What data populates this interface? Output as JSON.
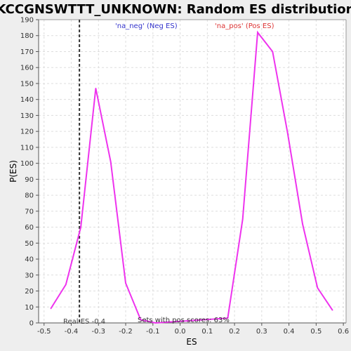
{
  "chart_data": {
    "type": "line",
    "title": "KCCGNSWTTT_UNKNOWN: Random ES distribution",
    "xlabel": "ES",
    "ylabel": "P(ES)",
    "xlim": [
      -0.52,
      0.61
    ],
    "ylim": [
      0,
      190
    ],
    "x_ticks": [
      -0.5,
      -0.4,
      -0.3,
      -0.2,
      -0.1,
      0.0,
      0.1,
      0.2,
      0.3,
      0.4,
      0.5,
      0.6
    ],
    "x_tick_labels": [
      "-0.5",
      "-0.4",
      "-0.3",
      "-0.2",
      "-0.1",
      "0.0",
      "0.1",
      "0.2",
      "0.3",
      "0.4",
      "0.5",
      "0.6"
    ],
    "y_ticks": [
      0,
      10,
      20,
      30,
      40,
      50,
      60,
      70,
      80,
      90,
      100,
      110,
      120,
      130,
      140,
      150,
      160,
      170,
      180,
      190
    ],
    "y_tick_labels": [
      "0",
      "10",
      "20",
      "30",
      "40",
      "50",
      "60",
      "70",
      "80",
      "90",
      "100",
      "110",
      "120",
      "130",
      "140",
      "150",
      "160",
      "170",
      "180",
      "190"
    ],
    "grid": true,
    "series": [
      {
        "color": "#ee33ee",
        "x": [
          -0.475,
          -0.42,
          -0.365,
          -0.31,
          -0.255,
          -0.2,
          -0.145,
          -0.09,
          0.175,
          0.23,
          0.285,
          0.34,
          0.395,
          0.45,
          0.505,
          0.56
        ],
        "y": [
          9,
          24,
          60,
          147,
          101,
          25,
          2,
          0,
          3,
          65,
          182,
          170,
          119,
          62,
          22,
          8
        ]
      }
    ],
    "real_es": -0.37,
    "annotations": {
      "neg_label": "'na_neg' (Neg ES)",
      "neg_color": "#3333cc",
      "pos_label": "'na_pos' (Pos ES)",
      "pos_color": "#dd3333",
      "real_es_label": "Real ES -0.4",
      "sets_label": "Sets with pos scores: 63%"
    }
  }
}
